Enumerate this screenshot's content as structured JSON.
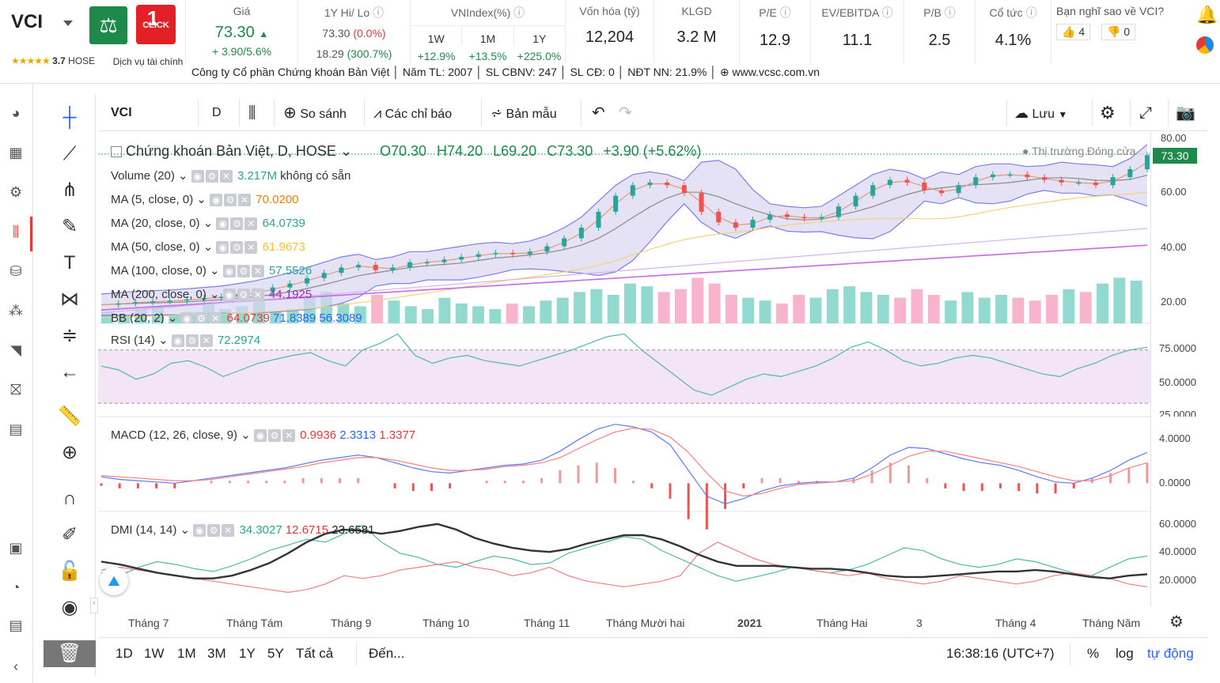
{
  "header": {
    "ticker": "VCI",
    "rating_stars": "★★★★★",
    "rating": "3.7",
    "exchange": "HOSE",
    "service": "Dịch vụ tài chính",
    "click_label": "CLICK",
    "price_label": "Giá",
    "price": "73.30",
    "price_change": "+ 3.90/5.6%",
    "hilo_label": "1Y Hi/ Lo",
    "hi": "73.30",
    "hi_pct": "(0.0%)",
    "lo": "18.29",
    "lo_pct": "(300.7%)",
    "vnindex_label": "VNIndex(%)",
    "vn_tabs": [
      "1W",
      "1M",
      "1Y"
    ],
    "vn_vals": [
      "+12.9%",
      "+13.5%",
      "+225.0%"
    ],
    "mcap_label": "Vốn hóa (tỷ)",
    "mcap": "12,204",
    "klgd_label": "KLGD",
    "klgd": "3.2 M",
    "pe_label": "P/E",
    "pe": "12.9",
    "ev_label": "EV/EBITDA",
    "ev": "11.1",
    "pb_label": "P/B",
    "pb": "2.5",
    "div_label": "Cổ tức",
    "div": "4.1%",
    "opinion": "Bạn nghĩ sao về VCI?",
    "up_votes": "4",
    "down_votes": "0",
    "info": "Công ty Cổ phần Chứng khoán Bản Việt │ Năm TL: 2007 │ SL CBNV: 247 │ SL CĐ: 0 │ NĐT NN: 21.9% │ ⊕ www.vcsc.com.vn"
  },
  "toolbar": {
    "symbol": "VCI",
    "interval": "D",
    "compare": "So sánh",
    "indicators": "Các chỉ báo",
    "templates": "Bản mẫu",
    "save": "Lưu"
  },
  "chart_data": {
    "type": "line",
    "title": "Chứng khoán Bản Việt, D, HOSE",
    "ohlc": {
      "open": "O70.30",
      "high": "H74.20",
      "low": "L69.20",
      "close": "C73.30",
      "change": "+3.90 (+5.62%)"
    },
    "market_status": "Thị trường Đóng cửa",
    "last_price": "73.30",
    "price_axis": [
      "80.00",
      "60.00",
      "40.00",
      "20.00"
    ],
    "indicators": [
      {
        "name": "Volume (20)",
        "values": [
          "3.217M",
          "không có sẵn"
        ]
      },
      {
        "name": "MA (5, close, 0)",
        "value": "70.0200"
      },
      {
        "name": "MA (20, close, 0)",
        "value": "64.0739"
      },
      {
        "name": "MA (50, close, 0)",
        "value": "61.9673"
      },
      {
        "name": "MA (100, close, 0)",
        "value": "57.5526"
      },
      {
        "name": "MA (200, close, 0)",
        "value": "44.1925"
      },
      {
        "name": "BB (20, 2)",
        "values": [
          "64.0739",
          "71.8389",
          "56.3089"
        ]
      }
    ],
    "rsi": {
      "name": "RSI (14)",
      "value": "72.2974",
      "axis": [
        "75.0000",
        "50.0000",
        "25.0000"
      ]
    },
    "macd": {
      "name": "MACD (12, 26, close, 9)",
      "values": [
        "0.9936",
        "2.3313",
        "1.3377"
      ],
      "axis": [
        "4.0000",
        "0.0000"
      ]
    },
    "dmi": {
      "name": "DMI (14, 14)",
      "values": [
        "34.3027",
        "12.6715",
        "23.6581"
      ],
      "axis": [
        "60.0000",
        "40.0000",
        "20.0000"
      ]
    },
    "x_labels": [
      "Tháng 7",
      "Tháng Tám",
      "Tháng 9",
      "Tháng 10",
      "Tháng 11",
      "Tháng Mười hai",
      "2021",
      "Tháng Hai",
      "3",
      "Tháng 4",
      "Tháng Năm"
    ],
    "close_series": [
      17,
      17.5,
      18,
      18.3,
      18.5,
      19,
      19.5,
      20,
      21,
      22,
      23.5,
      25,
      27,
      29,
      31,
      32,
      30,
      31,
      33,
      33,
      34,
      35,
      36,
      36.5,
      36,
      37,
      39,
      42,
      46,
      52,
      58,
      62,
      63,
      62,
      59,
      52,
      48,
      46,
      49,
      51,
      50,
      49.5,
      50,
      54,
      58,
      62,
      64,
      63,
      60,
      59,
      62,
      65,
      66,
      66,
      65,
      64,
      63,
      63,
      62,
      65,
      68,
      73.3
    ],
    "volume_series": [
      4,
      3,
      5,
      6,
      3,
      4,
      7,
      5,
      6,
      8,
      4,
      5,
      9,
      11,
      7,
      6,
      10,
      8,
      6,
      5,
      9,
      7,
      6,
      5,
      7,
      6,
      8,
      9,
      11,
      12,
      10,
      14,
      13,
      11,
      12,
      16,
      14,
      10,
      9,
      8,
      7,
      10,
      9,
      12,
      13,
      11,
      10,
      9,
      12,
      10,
      8,
      11,
      9,
      10,
      9,
      8,
      10,
      12,
      11,
      14,
      16,
      15
    ],
    "rsi_series": [
      58,
      55,
      48,
      52,
      60,
      62,
      57,
      50,
      55,
      60,
      63,
      66,
      68,
      62,
      58,
      70,
      75,
      82,
      66,
      60,
      64,
      66,
      62,
      60,
      58,
      62,
      66,
      70,
      75,
      80,
      82,
      70,
      60,
      50,
      40,
      36,
      42,
      48,
      52,
      50,
      54,
      58,
      64,
      72,
      76,
      70,
      62,
      58,
      60,
      64,
      66,
      64,
      60,
      56,
      52,
      50,
      56,
      60,
      66,
      70,
      72
    ],
    "macd_series": [
      0.5,
      0.3,
      0.2,
      0.1,
      0,
      0.2,
      0.4,
      0.6,
      0.8,
      1.0,
      1.2,
      1.5,
      1.8,
      2.0,
      2.2,
      2.0,
      1.6,
      1.2,
      0.9,
      0.8,
      1.0,
      1.2,
      1.4,
      1.5,
      1.8,
      2.5,
      3.4,
      4.2,
      4.6,
      4.4,
      4.0,
      3.0,
      1.0,
      -1.0,
      -1.6,
      -1.2,
      -0.6,
      -0.2,
      0,
      0.1,
      0.1,
      0.4,
      1.2,
      2.2,
      2.8,
      2.7,
      2.3,
      1.9,
      1.6,
      1.4,
      1.0,
      0.5,
      0.1,
      0,
      0.4,
      1.0,
      1.8,
      2.4
    ],
    "macd_signal": [
      0.6,
      0.5,
      0.4,
      0.3,
      0.2,
      0.2,
      0.3,
      0.5,
      0.7,
      0.9,
      1.1,
      1.3,
      1.6,
      1.8,
      2.0,
      2.0,
      1.8,
      1.5,
      1.2,
      1.0,
      1.0,
      1.1,
      1.3,
      1.4,
      1.6,
      2.0,
      2.7,
      3.4,
      4.0,
      4.3,
      4.2,
      3.6,
      2.4,
      0.8,
      -0.6,
      -1.0,
      -0.8,
      -0.4,
      -0.1,
      0,
      0.1,
      0.2,
      0.7,
      1.4,
      2.1,
      2.5,
      2.5,
      2.2,
      1.9,
      1.6,
      1.3,
      0.9,
      0.5,
      0.2,
      0.2,
      0.6,
      1.2,
      1.6
    ],
    "adx_series": [
      32,
      30,
      27,
      24,
      22,
      20,
      20,
      22,
      26,
      31,
      38,
      46,
      52,
      55,
      54,
      52,
      54,
      57,
      59,
      55,
      49,
      45,
      42,
      40,
      39,
      41,
      45,
      48,
      51,
      51,
      48,
      43,
      37,
      32,
      29,
      29,
      29,
      28,
      27,
      27,
      26,
      24,
      22,
      21,
      21,
      22,
      23,
      24,
      25,
      25,
      26,
      25,
      23,
      21,
      20,
      22,
      23
    ],
    "plus_di": [
      24,
      22,
      28,
      32,
      30,
      27,
      25,
      29,
      34,
      40,
      44,
      48,
      46,
      52,
      58,
      46,
      38,
      35,
      30,
      28,
      32,
      36,
      34,
      30,
      31,
      38,
      42,
      46,
      50,
      48,
      40,
      34,
      28,
      22,
      18,
      21,
      24,
      28,
      26,
      24,
      26,
      30,
      36,
      42,
      40,
      34,
      30,
      28,
      30,
      34,
      32,
      28,
      24,
      22,
      28,
      34,
      36
    ],
    "minus_di": [
      26,
      28,
      26,
      24,
      22,
      20,
      18,
      16,
      14,
      12,
      10,
      12,
      16,
      22,
      20,
      22,
      26,
      28,
      30,
      32,
      28,
      26,
      22,
      24,
      28,
      22,
      18,
      16,
      14,
      16,
      18,
      22,
      38,
      46,
      40,
      34,
      30,
      28,
      26,
      24,
      22,
      24,
      20,
      18,
      16,
      18,
      22,
      20,
      18,
      16,
      18,
      22,
      24,
      22,
      20,
      16,
      14
    ]
  },
  "bottom": {
    "ranges": [
      "1D",
      "1W",
      "1M",
      "3M",
      "1Y",
      "5Y",
      "Tất cả"
    ],
    "goto": "Đến...",
    "time": "16:38:16 (UTC+7)",
    "pct": "%",
    "log": "log",
    "auto": "tự động"
  },
  "colors": {
    "up": "#26a69a",
    "down": "#ef5350",
    "brand_green": "#1e8a4a",
    "accent": "#2962ff"
  }
}
